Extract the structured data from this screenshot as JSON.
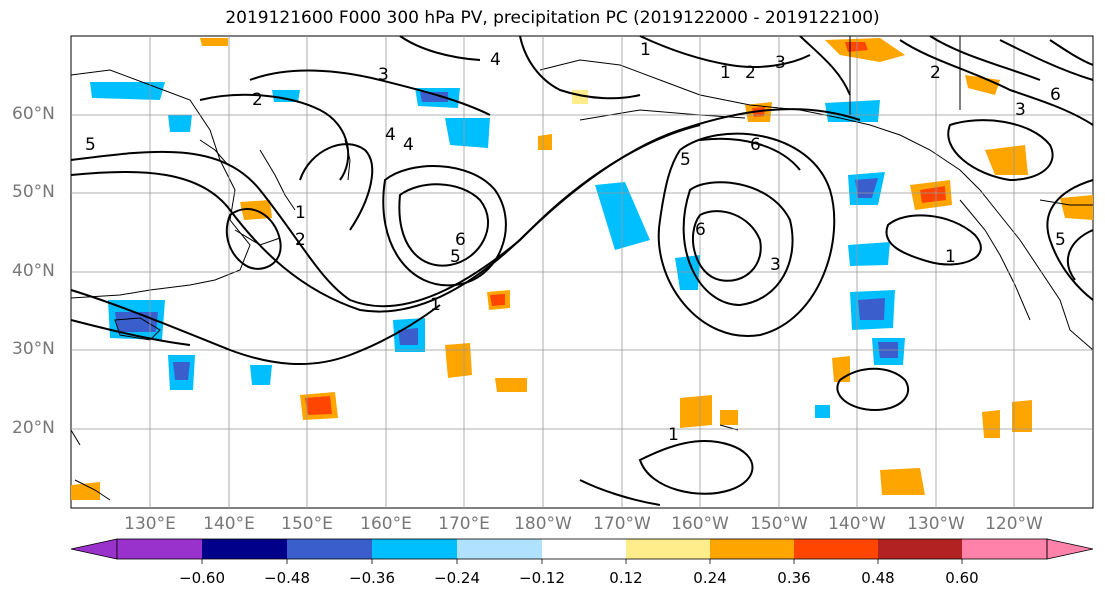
{
  "title": "2019121600 F000 300 hPa PV, precipitation PC (2019122000 - 2019122100)",
  "lat_labels": [
    "60°N",
    "50°N",
    "40°N",
    "30°N",
    "20°N"
  ],
  "lon_labels": [
    "130°E",
    "140°E",
    "150°E",
    "160°E",
    "170°E",
    "180°W",
    "170°W",
    "160°W",
    "150°W",
    "140°W",
    "130°W",
    "120°W"
  ],
  "colorbar": {
    "ticks": [
      "−0.60",
      "−0.48",
      "−0.36",
      "−0.24",
      "−0.12",
      "0.12",
      "0.24",
      "0.36",
      "0.48",
      "0.60"
    ],
    "colors": [
      "#9932cc",
      "#00008b",
      "#3a5fcd",
      "#00bfff",
      "#b0e2ff",
      "#ffffff",
      "#ffec8b",
      "#ffa500",
      "#ff4500",
      "#b22222",
      "#ff82ab"
    ]
  },
  "contour_labels": [
    "1",
    "2",
    "3",
    "4",
    "5",
    "6",
    "1",
    "2",
    "3",
    "4",
    "5",
    "6",
    "1",
    "2",
    "3",
    "4",
    "5",
    "6",
    "1",
    "1",
    "2",
    "3",
    "6",
    "5",
    "1"
  ]
}
